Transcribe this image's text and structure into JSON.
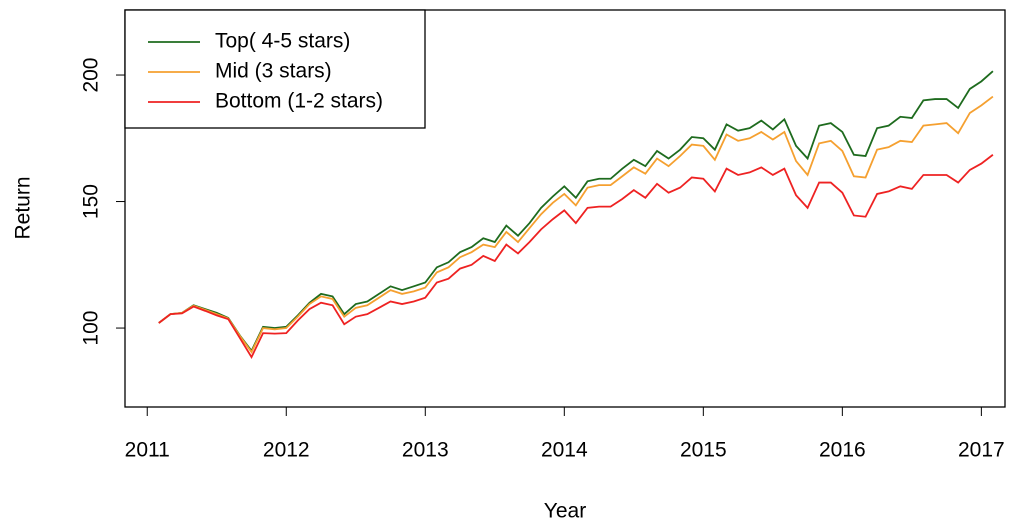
{
  "chart_data": {
    "type": "line",
    "x_label": "Year",
    "y_label": "Return",
    "x": [
      2011.083,
      2011.167,
      2011.25,
      2011.333,
      2011.417,
      2011.5,
      2011.583,
      2011.667,
      2011.75,
      2011.833,
      2011.917,
      2012.0,
      2012.083,
      2012.167,
      2012.25,
      2012.333,
      2012.417,
      2012.5,
      2012.583,
      2012.667,
      2012.75,
      2012.833,
      2012.917,
      2013.0,
      2013.083,
      2013.167,
      2013.25,
      2013.333,
      2013.417,
      2013.5,
      2013.583,
      2013.667,
      2013.75,
      2013.833,
      2013.917,
      2014.0,
      2014.083,
      2014.167,
      2014.25,
      2014.333,
      2014.417,
      2014.5,
      2014.583,
      2014.667,
      2014.75,
      2014.833,
      2014.917,
      2015.0,
      2015.083,
      2015.167,
      2015.25,
      2015.333,
      2015.417,
      2015.5,
      2015.583,
      2015.667,
      2015.75,
      2015.833,
      2015.917,
      2016.0,
      2016.083,
      2016.167,
      2016.25,
      2016.333,
      2016.417,
      2016.5,
      2016.583,
      2016.667,
      2016.75,
      2016.833,
      2016.917,
      2017.0,
      2017.083
    ],
    "series": [
      {
        "name": "Top( 4-5 stars)",
        "color": "#1e6b1e",
        "values": [
          102,
          105.5,
          106,
          109,
          107.5,
          106,
          104,
          97,
          91,
          100.5,
          100,
          100.5,
          105,
          110,
          113.5,
          112.5,
          105.5,
          109.5,
          110.5,
          113.5,
          116.5,
          115,
          116.5,
          118,
          124,
          126,
          130,
          132,
          135.5,
          134,
          140.5,
          136.5,
          141.5,
          147.5,
          152,
          156,
          151.5,
          158,
          159,
          159,
          163,
          166.5,
          164,
          170,
          167,
          170.5,
          175.5,
          175,
          170.5,
          180.5,
          178,
          179,
          182,
          178.5,
          182.5,
          172,
          167,
          180,
          181,
          177.5,
          168.5,
          168,
          179,
          180,
          183.5,
          183,
          190,
          190.5,
          190.5,
          187,
          194.5,
          197.5,
          201.5
        ]
      },
      {
        "name": "Mid (3 stars)",
        "color": "#f5a030",
        "values": [
          102,
          105.5,
          106,
          108.8,
          107.2,
          105.5,
          103.8,
          96.8,
          90.5,
          100,
          99.5,
          100,
          104.5,
          109.5,
          112.5,
          111.5,
          104.5,
          108,
          109,
          112,
          115,
          113.5,
          114.5,
          116,
          122,
          124,
          128,
          130,
          133,
          132,
          138,
          134,
          139.5,
          145,
          149.5,
          153,
          148.5,
          155.5,
          156.5,
          156.5,
          160,
          163.5,
          161,
          167,
          164,
          168,
          172.5,
          172,
          166.5,
          176.5,
          174,
          175,
          177.5,
          174.5,
          177.5,
          166,
          160.5,
          173,
          174,
          170,
          160,
          159.5,
          170.5,
          171.5,
          174,
          173.5,
          180,
          180.5,
          181,
          177,
          185,
          188,
          191.5
        ]
      },
      {
        "name": "Bottom (1-2 stars)",
        "color": "#ee2222",
        "values": [
          102,
          105.5,
          105.8,
          108.5,
          106.8,
          105,
          103.5,
          96,
          88.5,
          98,
          97.8,
          98,
          103,
          107.5,
          110,
          109,
          101.5,
          104.5,
          105.5,
          108,
          110.5,
          109.5,
          110.5,
          112,
          118,
          119.5,
          123.5,
          125,
          128.5,
          126.5,
          133,
          129.5,
          134,
          139,
          143,
          146.5,
          141.5,
          147.5,
          148,
          148,
          151,
          154.5,
          151.5,
          157,
          153.5,
          155.5,
          159.5,
          159,
          154,
          163,
          160.5,
          161.5,
          163.5,
          160.5,
          163,
          152.5,
          147.5,
          157.5,
          157.5,
          153.5,
          144.5,
          144,
          153,
          154,
          156,
          155,
          160.5,
          160.5,
          160.5,
          157.5,
          162.5,
          165,
          168.5
        ]
      }
    ],
    "xlim": [
      2010.84,
      2017.17
    ],
    "ylim": [
      68.8,
      225.7
    ],
    "xticks": [
      2011,
      2012,
      2013,
      2014,
      2015,
      2016,
      2017
    ],
    "yticks": [
      100,
      150,
      200
    ],
    "legend": "top-left"
  }
}
